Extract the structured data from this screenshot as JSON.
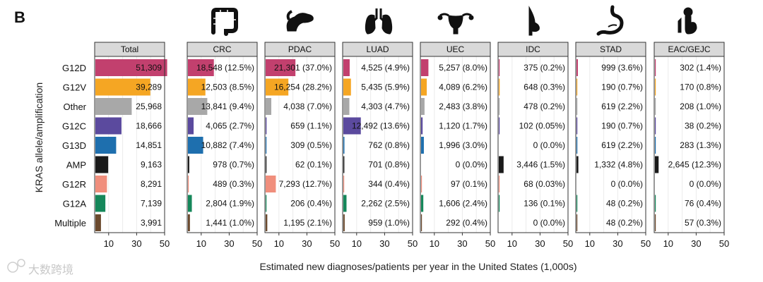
{
  "panel_label": "B",
  "watermark": "大数跨境",
  "chart_data": {
    "type": "bar",
    "orientation": "horizontal",
    "ylabel": "KRAS allele/amplification",
    "xlabel": "Estimated new diagnoses/patients per year in the United States (1,000s)",
    "xlim": [
      0,
      50
    ],
    "xticks": [
      10,
      30,
      50
    ],
    "categories": [
      "G12D",
      "G12V",
      "Other",
      "G12C",
      "G13D",
      "AMP",
      "G12R",
      "G12A",
      "Multiple"
    ],
    "category_colors": {
      "G12D": "#c2406e",
      "G12V": "#f5a623",
      "Other": "#a8a8a8",
      "G12C": "#5b4a9e",
      "G13D": "#1e6fae",
      "AMP": "#1a1a1a",
      "G12R": "#f08e7c",
      "G12A": "#15875a",
      "Multiple": "#6b4a2e"
    },
    "panels": [
      {
        "name": "Total",
        "icon": "",
        "values": [
          51.309,
          39.289,
          25.968,
          18.666,
          14.851,
          9.163,
          8.291,
          7.139,
          3.991
        ],
        "labels": [
          "51,309",
          "39,289",
          "25,968",
          "18,666",
          "14,851",
          "9,163",
          "8,291",
          "7,139",
          "3,991"
        ]
      },
      {
        "name": "CRC",
        "icon": "colon-icon",
        "values": [
          18.548,
          12.503,
          13.841,
          4.065,
          10.882,
          0.978,
          0.489,
          2.804,
          1.441
        ],
        "labels": [
          "18,548 (12.5%)",
          "12,503 (8.5%)",
          "13,841 (9.4%)",
          "4,065 (2.7%)",
          "10,882 (7.4%)",
          "978 (0.7%)",
          "489 (0.3%)",
          "2,804 (1.9%)",
          "1,441 (1.0%)"
        ]
      },
      {
        "name": "PDAC",
        "icon": "pancreas-icon",
        "values": [
          21.301,
          16.254,
          4.038,
          0.659,
          0.309,
          0.062,
          7.293,
          0.206,
          1.195
        ],
        "labels": [
          "21,301 (37.0%)",
          "16,254 (28.2%)",
          "4,038 (7.0%)",
          "659 (1.1%)",
          "309 (0.5%)",
          "62 (0.1%)",
          "7,293 (12.7%)",
          "206 (0.4%)",
          "1,195 (2.1%)"
        ]
      },
      {
        "name": "LUAD",
        "icon": "lungs-icon",
        "values": [
          4.525,
          5.435,
          4.303,
          12.492,
          0.762,
          0.701,
          0.344,
          2.262,
          0.959
        ],
        "labels": [
          "4,525 (4.9%)",
          "5,435 (5.9%)",
          "4,303 (4.7%)",
          "12,492 (13.6%)",
          "762 (0.8%)",
          "701 (0.8%)",
          "344 (0.4%)",
          "2,262 (2.5%)",
          "959 (1.0%)"
        ]
      },
      {
        "name": "UEC",
        "icon": "uterus-icon",
        "values": [
          5.257,
          4.089,
          2.483,
          1.12,
          1.996,
          0,
          0.097,
          1.606,
          0.292
        ],
        "labels": [
          "5,257 (8.0%)",
          "4,089 (6.2%)",
          "2,483 (3.8%)",
          "1,120 (1.7%)",
          "1,996 (3.0%)",
          "0 (0.0%)",
          "97 (0.1%)",
          "1,606 (2.4%)",
          "292 (0.4%)"
        ]
      },
      {
        "name": "IDC",
        "icon": "breast-icon",
        "values": [
          0.375,
          0.648,
          0.478,
          0.102,
          0,
          3.446,
          0.068,
          0.136,
          0
        ],
        "labels": [
          "375 (0.2%)",
          "648 (0.3%)",
          "478 (0.2%)",
          "102 (0.05%)",
          "0 (0.0%)",
          "3,446 (1.5%)",
          "68 (0.03%)",
          "136 (0.1%)",
          "0 (0.0%)"
        ]
      },
      {
        "name": "STAD",
        "icon": "stomach-icon",
        "values": [
          0.999,
          0.19,
          0.619,
          0.19,
          0.619,
          1.332,
          0,
          0.048,
          0.048
        ],
        "labels": [
          "999 (3.6%)",
          "190 (0.7%)",
          "619 (2.2%)",
          "190 (0.7%)",
          "619 (2.2%)",
          "1,332 (4.8%)",
          "0 (0.0%)",
          "48 (0.2%)",
          "48 (0.2%)"
        ]
      },
      {
        "name": "EAC/GEJC",
        "icon": "esophagus-icon",
        "values": [
          0.302,
          0.17,
          0.208,
          0.038,
          0.283,
          2.645,
          0,
          0.076,
          0.057
        ],
        "labels": [
          "302 (1.4%)",
          "170 (0.8%)",
          "208 (1.0%)",
          "38 (0.2%)",
          "283 (1.3%)",
          "2,645 (12.3%)",
          "0 (0.0%)",
          "76 (0.4%)",
          "57 (0.3%)"
        ]
      }
    ]
  }
}
